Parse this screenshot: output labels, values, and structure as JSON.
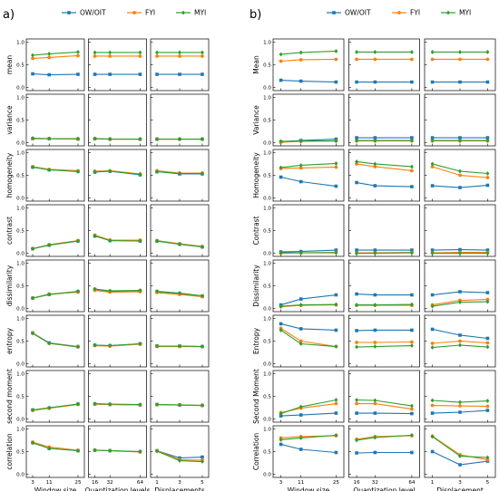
{
  "colors": {
    "OW/OIT": "#1f77b4",
    "FYI": "#ff7f0e",
    "MYI": "#2ca02c"
  },
  "chart_data": [
    {
      "type": "line",
      "panel": "a)",
      "legend": [
        "OW/OIT",
        "FYI",
        "MYI"
      ],
      "legend_position": "top",
      "ytick_labels": [
        "0.0",
        "0.5",
        "1.0"
      ],
      "ylim": [
        0,
        1
      ],
      "rows": [
        "mean",
        "variance",
        "homogeneity",
        "contrast",
        "dissimilarity",
        "entropy",
        "second moment",
        "correlation"
      ],
      "columns": [
        {
          "xlabel": "Window size",
          "x": [
            3,
            11,
            25
          ],
          "xtick_labels": [
            "3",
            "11",
            "25"
          ]
        },
        {
          "xlabel": "Quantization levels",
          "x": [
            16,
            32,
            64
          ],
          "xtick_labels": [
            "16",
            "32",
            "64"
          ]
        },
        {
          "xlabel": "Displacements",
          "x": [
            1,
            3,
            5
          ],
          "xtick_labels": [
            "1",
            "3",
            "5"
          ]
        }
      ],
      "values": {
        "mean": [
          {
            "OW/OIT": [
              0.3,
              0.28,
              0.29
            ],
            "FYI": [
              0.64,
              0.66,
              0.7
            ],
            "MYI": [
              0.71,
              0.74,
              0.78
            ]
          },
          {
            "OW/OIT": [
              0.29,
              0.29,
              0.29
            ],
            "FYI": [
              0.69,
              0.69,
              0.69
            ],
            "MYI": [
              0.77,
              0.77,
              0.77
            ]
          },
          {
            "OW/OIT": [
              0.29,
              0.29,
              0.29
            ],
            "FYI": [
              0.69,
              0.69,
              0.69
            ],
            "MYI": [
              0.77,
              0.77,
              0.77
            ]
          }
        ],
        "variance": [
          {
            "OW/OIT": [
              0.09,
              0.09,
              0.08
            ],
            "FYI": [
              0.09,
              0.09,
              0.08
            ],
            "MYI": [
              0.1,
              0.09,
              0.09
            ]
          },
          {
            "OW/OIT": [
              0.09,
              0.08,
              0.08
            ],
            "FYI": [
              0.09,
              0.08,
              0.08
            ],
            "MYI": [
              0.09,
              0.08,
              0.08
            ]
          },
          {
            "OW/OIT": [
              0.08,
              0.08,
              0.08
            ],
            "FYI": [
              0.08,
              0.08,
              0.08
            ],
            "MYI": [
              0.08,
              0.08,
              0.08
            ]
          }
        ],
        "homogeneity": [
          {
            "OW/OIT": [
              0.68,
              0.62,
              0.59
            ],
            "FYI": [
              0.69,
              0.63,
              0.6
            ],
            "MYI": [
              0.68,
              0.62,
              0.58
            ]
          },
          {
            "OW/OIT": [
              0.57,
              0.59,
              0.51
            ],
            "FYI": [
              0.59,
              0.6,
              0.53
            ],
            "MYI": [
              0.58,
              0.59,
              0.52
            ]
          },
          {
            "OW/OIT": [
              0.58,
              0.53,
              0.53
            ],
            "FYI": [
              0.6,
              0.55,
              0.55
            ],
            "MYI": [
              0.58,
              0.54,
              0.54
            ]
          }
        ],
        "contrast": [
          {
            "OW/OIT": [
              0.1,
              0.18,
              0.27
            ],
            "FYI": [
              0.1,
              0.19,
              0.28
            ],
            "MYI": [
              0.1,
              0.18,
              0.27
            ]
          },
          {
            "OW/OIT": [
              0.38,
              0.28,
              0.27
            ],
            "FYI": [
              0.4,
              0.29,
              0.29
            ],
            "MYI": [
              0.38,
              0.28,
              0.27
            ]
          },
          {
            "OW/OIT": [
              0.27,
              0.2,
              0.14
            ],
            "FYI": [
              0.28,
              0.21,
              0.15
            ],
            "MYI": [
              0.27,
              0.2,
              0.14
            ]
          }
        ],
        "dissimilarity": [
          {
            "OW/OIT": [
              0.23,
              0.31,
              0.37
            ],
            "FYI": [
              0.23,
              0.32,
              0.36
            ],
            "MYI": [
              0.23,
              0.31,
              0.38
            ]
          },
          {
            "OW/OIT": [
              0.42,
              0.38,
              0.39
            ],
            "FYI": [
              0.4,
              0.36,
              0.37
            ],
            "MYI": [
              0.43,
              0.39,
              0.4
            ]
          },
          {
            "OW/OIT": [
              0.37,
              0.33,
              0.27
            ],
            "FYI": [
              0.35,
              0.31,
              0.26
            ],
            "MYI": [
              0.38,
              0.34,
              0.28
            ]
          }
        ],
        "entropy": [
          {
            "OW/OIT": [
              0.68,
              0.46,
              0.38
            ],
            "FYI": [
              0.68,
              0.45,
              0.38
            ],
            "MYI": [
              0.67,
              0.45,
              0.37
            ]
          },
          {
            "OW/OIT": [
              0.41,
              0.4,
              0.44
            ],
            "FYI": [
              0.4,
              0.39,
              0.43
            ],
            "MYI": [
              0.41,
              0.4,
              0.44
            ]
          },
          {
            "OW/OIT": [
              0.39,
              0.39,
              0.38
            ],
            "FYI": [
              0.38,
              0.38,
              0.38
            ],
            "MYI": [
              0.39,
              0.39,
              0.38
            ]
          }
        ],
        "second moment": [
          {
            "OW/OIT": [
              0.2,
              0.24,
              0.33
            ],
            "FYI": [
              0.19,
              0.24,
              0.32
            ],
            "MYI": [
              0.2,
              0.25,
              0.33
            ]
          },
          {
            "OW/OIT": [
              0.33,
              0.32,
              0.31
            ],
            "FYI": [
              0.33,
              0.32,
              0.31
            ],
            "MYI": [
              0.34,
              0.33,
              0.32
            ]
          },
          {
            "OW/OIT": [
              0.32,
              0.31,
              0.3
            ],
            "FYI": [
              0.32,
              0.31,
              0.3
            ],
            "MYI": [
              0.32,
              0.31,
              0.3
            ]
          }
        ],
        "correlation": [
          {
            "OW/OIT": [
              0.7,
              0.57,
              0.52
            ],
            "FYI": [
              0.71,
              0.6,
              0.53
            ],
            "MYI": [
              0.69,
              0.57,
              0.52
            ]
          },
          {
            "OW/OIT": [
              0.53,
              0.52,
              0.5
            ],
            "FYI": [
              0.53,
              0.52,
              0.49
            ],
            "MYI": [
              0.53,
              0.52,
              0.5
            ]
          },
          {
            "OW/OIT": [
              0.52,
              0.36,
              0.38
            ],
            "FYI": [
              0.52,
              0.32,
              0.31
            ],
            "MYI": [
              0.51,
              0.3,
              0.28
            ]
          }
        ]
      }
    },
    {
      "type": "line",
      "panel": "b)",
      "legend": [
        "OW/OIT",
        "FYI",
        "MYI"
      ],
      "legend_position": "top",
      "ytick_labels": [
        "0.0",
        "0.5",
        "1.0"
      ],
      "ylim": [
        0,
        1
      ],
      "rows": [
        "Mean",
        "Variance",
        "Homogeneity",
        "Contrast",
        "Dissimilarity",
        "Entropy",
        "Second Moment",
        "Correlation"
      ],
      "columns": [
        {
          "xlabel": "Window size",
          "x": [
            3,
            11,
            25
          ],
          "xtick_labels": [
            "3",
            "11",
            "25"
          ]
        },
        {
          "xlabel": "Quantization level",
          "x": [
            16,
            32,
            64
          ],
          "xtick_labels": [
            "16",
            "32",
            "64"
          ]
        },
        {
          "xlabel": "Displacement",
          "x": [
            1,
            3,
            5
          ],
          "xtick_labels": [
            "1",
            "3",
            "5"
          ]
        }
      ],
      "values": {
        "Mean": [
          {
            "OW/OIT": [
              0.16,
              0.14,
              0.12
            ],
            "FYI": [
              0.58,
              0.61,
              0.62
            ],
            "MYI": [
              0.73,
              0.77,
              0.8
            ]
          },
          {
            "OW/OIT": [
              0.12,
              0.12,
              0.12
            ],
            "FYI": [
              0.62,
              0.62,
              0.62
            ],
            "MYI": [
              0.78,
              0.78,
              0.78
            ]
          },
          {
            "OW/OIT": [
              0.12,
              0.12,
              0.12
            ],
            "FYI": [
              0.62,
              0.62,
              0.62
            ],
            "MYI": [
              0.78,
              0.78,
              0.78
            ]
          }
        ],
        "Variance": [
          {
            "OW/OIT": [
              0.02,
              0.05,
              0.08
            ],
            "FYI": [
              0.01,
              0.03,
              0.04
            ],
            "MYI": [
              0.03,
              0.04,
              0.04
            ]
          },
          {
            "OW/OIT": [
              0.11,
              0.11,
              0.11
            ],
            "FYI": [
              0.04,
              0.04,
              0.04
            ],
            "MYI": [
              0.05,
              0.05,
              0.05
            ]
          },
          {
            "OW/OIT": [
              0.11,
              0.11,
              0.11
            ],
            "FYI": [
              0.04,
              0.04,
              0.04
            ],
            "MYI": [
              0.05,
              0.05,
              0.05
            ]
          }
        ],
        "Homogeneity": [
          {
            "OW/OIT": [
              0.46,
              0.36,
              0.26
            ],
            "FYI": [
              0.65,
              0.66,
              0.68
            ],
            "MYI": [
              0.67,
              0.72,
              0.76
            ]
          },
          {
            "OW/OIT": [
              0.34,
              0.27,
              0.25
            ],
            "FYI": [
              0.75,
              0.69,
              0.6
            ],
            "MYI": [
              0.8,
              0.75,
              0.69
            ]
          },
          {
            "OW/OIT": [
              0.27,
              0.23,
              0.28
            ],
            "FYI": [
              0.69,
              0.5,
              0.45
            ],
            "MYI": [
              0.75,
              0.59,
              0.54
            ]
          }
        ],
        "Contrast": [
          {
            "OW/OIT": [
              0.03,
              0.04,
              0.07
            ],
            "FYI": [
              0.0,
              0.01,
              0.02
            ],
            "MYI": [
              0.01,
              0.01,
              0.01
            ]
          },
          {
            "OW/OIT": [
              0.07,
              0.07,
              0.07
            ],
            "FYI": [
              0.01,
              0.01,
              0.02
            ],
            "MYI": [
              0.0,
              0.0,
              0.01
            ]
          },
          {
            "OW/OIT": [
              0.07,
              0.08,
              0.07
            ],
            "FYI": [
              0.01,
              0.02,
              0.02
            ],
            "MYI": [
              0.0,
              0.0,
              0.0
            ]
          }
        ],
        "Dissimilarity": [
          {
            "OW/OIT": [
              0.08,
              0.21,
              0.3
            ],
            "FYI": [
              0.04,
              0.07,
              0.08
            ],
            "MYI": [
              0.05,
              0.08,
              0.09
            ]
          },
          {
            "OW/OIT": [
              0.32,
              0.3,
              0.3
            ],
            "FYI": [
              0.07,
              0.07,
              0.07
            ],
            "MYI": [
              0.08,
              0.08,
              0.09
            ]
          },
          {
            "OW/OIT": [
              0.3,
              0.37,
              0.35
            ],
            "FYI": [
              0.08,
              0.18,
              0.2
            ],
            "MYI": [
              0.05,
              0.14,
              0.15
            ]
          }
        ],
        "Entropy": [
          {
            "OW/OIT": [
              0.88,
              0.77,
              0.74
            ],
            "FYI": [
              0.78,
              0.5,
              0.38
            ],
            "MYI": [
              0.74,
              0.44,
              0.38
            ]
          },
          {
            "OW/OIT": [
              0.73,
              0.74,
              0.74
            ],
            "FYI": [
              0.47,
              0.47,
              0.48
            ],
            "MYI": [
              0.37,
              0.38,
              0.4
            ]
          },
          {
            "OW/OIT": [
              0.76,
              0.63,
              0.56
            ],
            "FYI": [
              0.45,
              0.5,
              0.46
            ],
            "MYI": [
              0.36,
              0.41,
              0.37
            ]
          }
        ],
        "Second Moment": [
          {
            "OW/OIT": [
              0.07,
              0.09,
              0.13
            ],
            "FYI": [
              0.14,
              0.24,
              0.34
            ],
            "MYI": [
              0.12,
              0.27,
              0.42
            ]
          },
          {
            "OW/OIT": [
              0.13,
              0.13,
              0.12
            ],
            "FYI": [
              0.34,
              0.34,
              0.22
            ],
            "MYI": [
              0.42,
              0.41,
              0.29
            ]
          },
          {
            "OW/OIT": [
              0.13,
              0.15,
              0.19
            ],
            "FYI": [
              0.3,
              0.29,
              0.28
            ],
            "MYI": [
              0.41,
              0.37,
              0.4
            ]
          }
        ],
        "Correlation": [
          {
            "OW/OIT": [
              0.66,
              0.55,
              0.48
            ],
            "FYI": [
              0.8,
              0.83,
              0.85
            ],
            "MYI": [
              0.76,
              0.8,
              0.86
            ]
          },
          {
            "OW/OIT": [
              0.47,
              0.48,
              0.48
            ],
            "FYI": [
              0.77,
              0.83,
              0.85
            ],
            "MYI": [
              0.75,
              0.81,
              0.86
            ]
          },
          {
            "OW/OIT": [
              0.5,
              0.21,
              0.29
            ],
            "FYI": [
              0.84,
              0.43,
              0.32
            ],
            "MYI": [
              0.83,
              0.4,
              0.37
            ]
          }
        ]
      }
    }
  ]
}
